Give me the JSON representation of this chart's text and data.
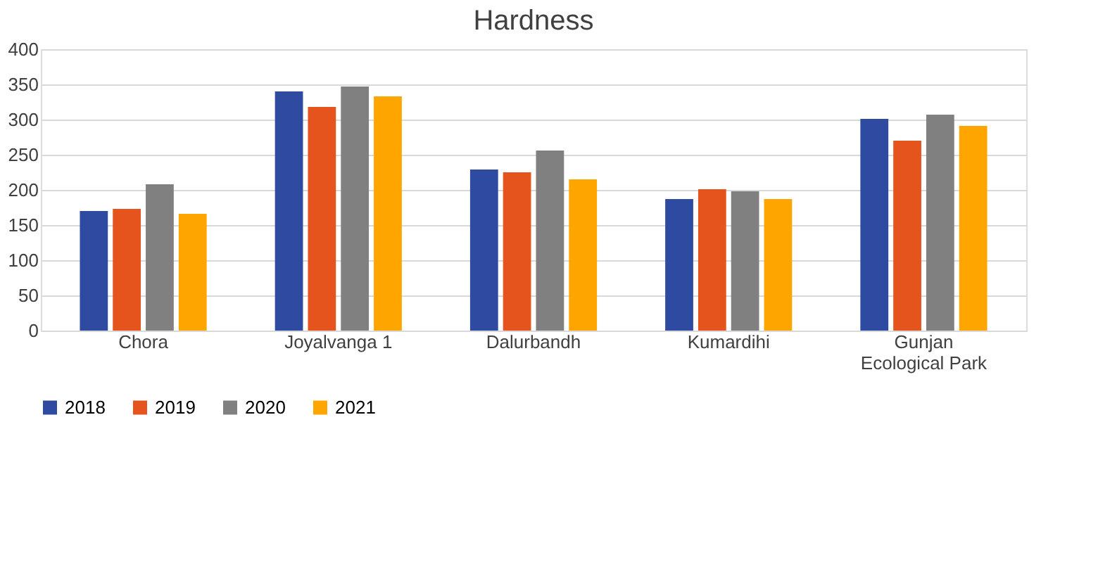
{
  "chart_data": {
    "type": "bar",
    "title": "Hardness",
    "categories": [
      "Chora",
      "Joyalvanga 1",
      "Dalurbandh",
      "Kumardihi",
      "Gunjan Ecological Park"
    ],
    "series": [
      {
        "name": "2018",
        "color": "#2f4ba1",
        "values": [
          170,
          340,
          229,
          187,
          301
        ]
      },
      {
        "name": "2019",
        "color": "#e5541c",
        "values": [
          173,
          318,
          225,
          201,
          270
        ]
      },
      {
        "name": "2020",
        "color": "#808080",
        "values": [
          208,
          347,
          256,
          198,
          307
        ]
      },
      {
        "name": "2021",
        "color": "#ffa500",
        "values": [
          166,
          333,
          215,
          187,
          291
        ]
      }
    ],
    "ylim": [
      0,
      400
    ],
    "yticks": [
      0,
      50,
      100,
      150,
      200,
      250,
      300,
      350,
      400
    ],
    "grid": "y",
    "legend": "bottom"
  }
}
